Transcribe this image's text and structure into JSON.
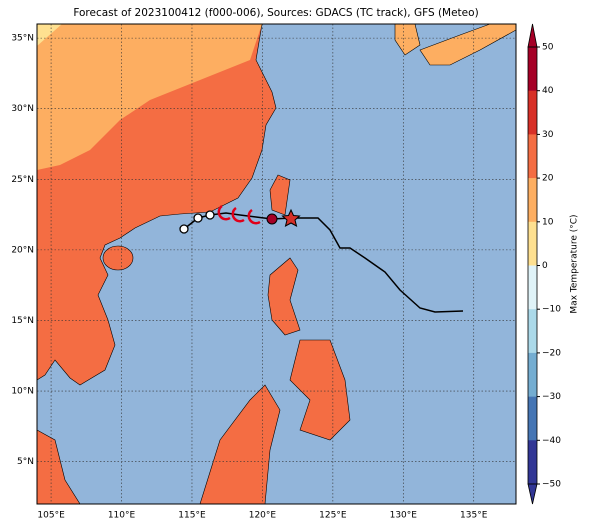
{
  "map": {
    "title": "Forecast of 2023100412 (f000-006), Sources: GDACS (TC track), GFS (Meteo)",
    "lonlim": [
      104,
      138
    ],
    "latlim": [
      2,
      36
    ],
    "lon_ticks": [
      {
        "value": 105,
        "label": "105°E"
      },
      {
        "value": 110,
        "label": "110°E"
      },
      {
        "value": 115,
        "label": "115°E"
      },
      {
        "value": 120,
        "label": "120°E"
      },
      {
        "value": 125,
        "label": "125°E"
      },
      {
        "value": 130,
        "label": "130°E"
      },
      {
        "value": 135,
        "label": "135°E"
      }
    ],
    "lat_ticks": [
      {
        "value": 5,
        "label": "5°N"
      },
      {
        "value": 10,
        "label": "10°N"
      },
      {
        "value": 15,
        "label": "15°N"
      },
      {
        "value": 20,
        "label": "20°N"
      },
      {
        "value": 25,
        "label": "25°N"
      },
      {
        "value": 30,
        "label": "30°N"
      },
      {
        "value": 35,
        "label": "35°N"
      }
    ]
  },
  "colorbar": {
    "label": "Max Temperature (°C)",
    "lim": [
      -50,
      50
    ],
    "ticks": [
      50,
      40,
      30,
      20,
      10,
      0,
      {
        "value": -10,
        "label": "−10"
      },
      {
        "value": -20,
        "label": "−20"
      },
      {
        "value": -30,
        "label": "−30"
      },
      {
        "value": -40,
        "label": "−40"
      },
      {
        "value": -50,
        "label": "−50"
      }
    ],
    "colors": [
      "#a50026",
      "#d73027",
      "#f46d43",
      "#fdae61",
      "#fee090",
      "#e0f3f8",
      "#abd9e9",
      "#74add1",
      "#4575b4",
      "#313695"
    ]
  }
}
